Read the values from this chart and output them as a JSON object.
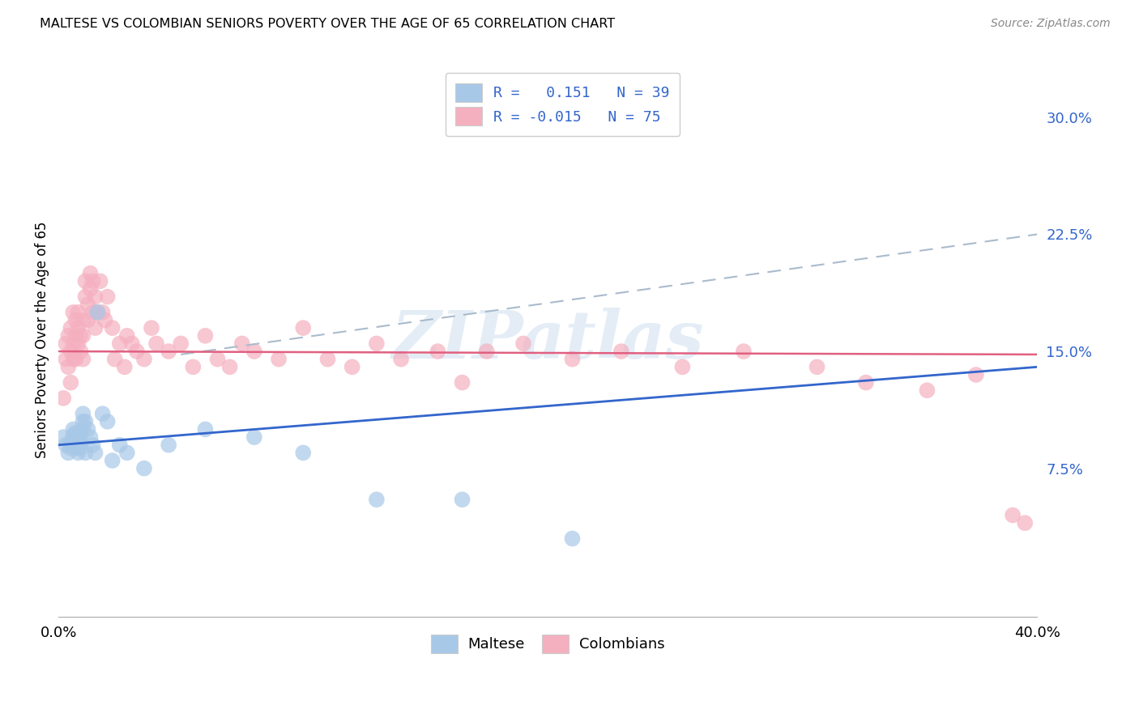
{
  "title": "MALTESE VS COLOMBIAN SENIORS POVERTY OVER THE AGE OF 65 CORRELATION CHART",
  "source": "Source: ZipAtlas.com",
  "ylabel": "Seniors Poverty Over the Age of 65",
  "xlim": [
    0.0,
    0.4
  ],
  "ylim": [
    -0.02,
    0.335
  ],
  "ytick_positions": [
    0.075,
    0.15,
    0.225,
    0.3
  ],
  "ytick_labels": [
    "7.5%",
    "15.0%",
    "22.5%",
    "30.0%"
  ],
  "grid_color": "#cccccc",
  "background_color": "#ffffff",
  "maltese_color": "#a8c8e8",
  "colombian_color": "#f5b0c0",
  "maltese_line_color": "#3366cc",
  "maltese_line_style": "solid",
  "colombian_line_color": "#e06080",
  "colombian_line_style": "solid",
  "dashed_line_color": "#aabbcc",
  "maltese_R": 0.151,
  "maltese_N": 39,
  "colombian_R": -0.015,
  "colombian_N": 75,
  "legend_maltese_label": "Maltese",
  "legend_colombian_label": "Colombians",
  "watermark": "ZIPatlas",
  "maltese_x": [
    0.002,
    0.003,
    0.004,
    0.005,
    0.005,
    0.006,
    0.006,
    0.007,
    0.007,
    0.007,
    0.008,
    0.008,
    0.008,
    0.009,
    0.009,
    0.009,
    0.01,
    0.01,
    0.01,
    0.011,
    0.011,
    0.012,
    0.013,
    0.014,
    0.015,
    0.016,
    0.018,
    0.02,
    0.022,
    0.025,
    0.028,
    0.035,
    0.045,
    0.06,
    0.08,
    0.1,
    0.13,
    0.165,
    0.21
  ],
  "maltese_y": [
    0.095,
    0.09,
    0.085,
    0.088,
    0.092,
    0.096,
    0.1,
    0.088,
    0.093,
    0.098,
    0.085,
    0.09,
    0.095,
    0.088,
    0.092,
    0.097,
    0.1,
    0.105,
    0.11,
    0.085,
    0.105,
    0.1,
    0.095,
    0.09,
    0.085,
    0.175,
    0.11,
    0.105,
    0.08,
    0.09,
    0.085,
    0.075,
    0.09,
    0.1,
    0.095,
    0.085,
    0.055,
    0.055,
    0.03
  ],
  "colombian_x": [
    0.002,
    0.003,
    0.003,
    0.004,
    0.004,
    0.005,
    0.005,
    0.005,
    0.006,
    0.006,
    0.006,
    0.007,
    0.007,
    0.007,
    0.008,
    0.008,
    0.008,
    0.009,
    0.009,
    0.01,
    0.01,
    0.01,
    0.011,
    0.011,
    0.012,
    0.012,
    0.013,
    0.013,
    0.014,
    0.014,
    0.015,
    0.015,
    0.016,
    0.017,
    0.018,
    0.019,
    0.02,
    0.022,
    0.023,
    0.025,
    0.027,
    0.028,
    0.03,
    0.032,
    0.035,
    0.038,
    0.04,
    0.045,
    0.05,
    0.055,
    0.06,
    0.065,
    0.07,
    0.075,
    0.08,
    0.09,
    0.1,
    0.11,
    0.12,
    0.13,
    0.14,
    0.155,
    0.165,
    0.175,
    0.19,
    0.21,
    0.23,
    0.255,
    0.28,
    0.31,
    0.33,
    0.355,
    0.375,
    0.39,
    0.395
  ],
  "colombian_y": [
    0.12,
    0.145,
    0.155,
    0.14,
    0.16,
    0.13,
    0.15,
    0.165,
    0.145,
    0.155,
    0.175,
    0.145,
    0.16,
    0.17,
    0.155,
    0.165,
    0.175,
    0.15,
    0.16,
    0.145,
    0.16,
    0.17,
    0.185,
    0.195,
    0.17,
    0.18,
    0.19,
    0.2,
    0.175,
    0.195,
    0.165,
    0.185,
    0.175,
    0.195,
    0.175,
    0.17,
    0.185,
    0.165,
    0.145,
    0.155,
    0.14,
    0.16,
    0.155,
    0.15,
    0.145,
    0.165,
    0.155,
    0.15,
    0.155,
    0.14,
    0.16,
    0.145,
    0.14,
    0.155,
    0.15,
    0.145,
    0.165,
    0.145,
    0.14,
    0.155,
    0.145,
    0.15,
    0.13,
    0.15,
    0.155,
    0.145,
    0.15,
    0.14,
    0.15,
    0.14,
    0.13,
    0.125,
    0.135,
    0.045,
    0.04
  ]
}
